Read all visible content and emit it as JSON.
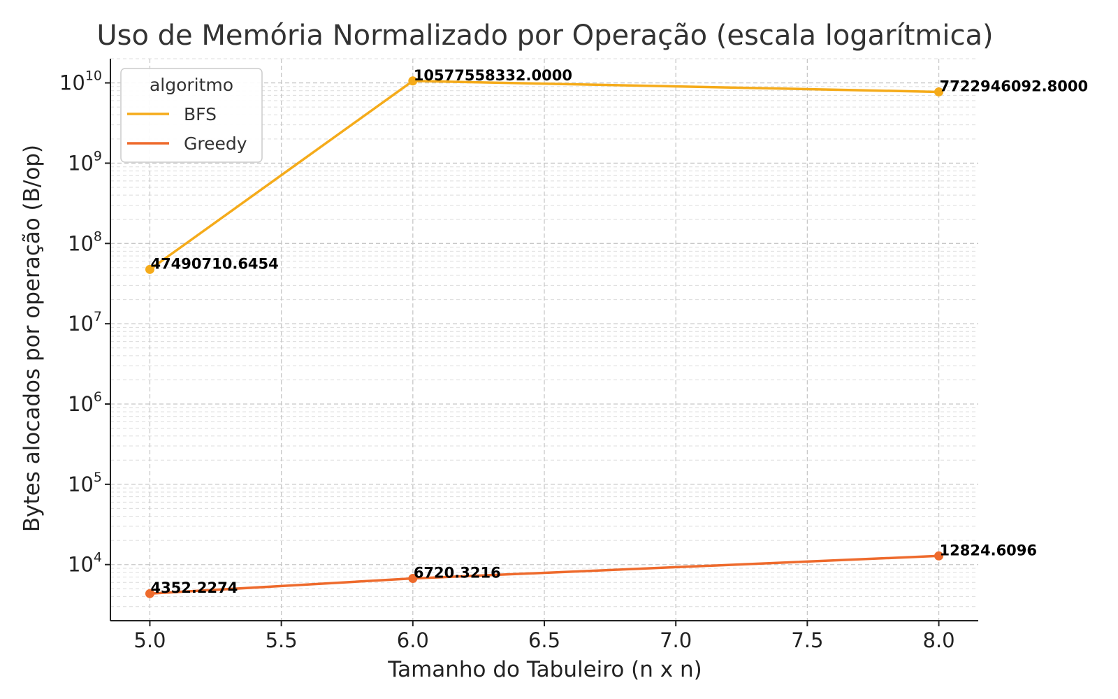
{
  "chart_data": {
    "type": "line",
    "title": "Uso de Memória Normalizado por Operação (escala logarítmica)",
    "xlabel": "Tamanho do Tabuleiro (n x n)",
    "ylabel": "Bytes alocados por operação (B/op)",
    "yscale": "log",
    "xlim": [
      4.85,
      8.15
    ],
    "ylim": [
      2000,
      20000000000
    ],
    "x_ticks": [
      "5.0",
      "5.5",
      "6.0",
      "6.5",
      "7.0",
      "7.5",
      "8.0"
    ],
    "y_ticks": [
      {
        "base": "10",
        "exp": "4"
      },
      {
        "base": "10",
        "exp": "5"
      },
      {
        "base": "10",
        "exp": "6"
      },
      {
        "base": "10",
        "exp": "7"
      },
      {
        "base": "10",
        "exp": "8"
      },
      {
        "base": "10",
        "exp": "9"
      },
      {
        "base": "10",
        "exp": "10"
      }
    ],
    "grid": true,
    "legend": {
      "title": "algoritmo",
      "position": "upper-left"
    },
    "series": [
      {
        "name": "BFS",
        "color": "#f5ab1a",
        "x": [
          5,
          6,
          8
        ],
        "y": [
          47490710.6454,
          10577558332.0,
          7722946092.8
        ],
        "labels": [
          "47490710.6454",
          "10577558332.0000",
          "7722946092.8000"
        ]
      },
      {
        "name": "Greedy",
        "color": "#ee6a2c",
        "x": [
          5,
          6,
          8
        ],
        "y": [
          4352.2274,
          6720.3216,
          12824.6096
        ],
        "labels": [
          "4352.2274",
          "6720.3216",
          "12824.6096"
        ]
      }
    ]
  }
}
